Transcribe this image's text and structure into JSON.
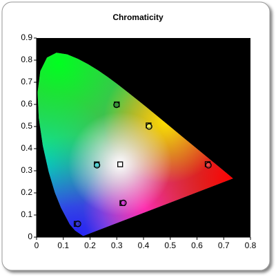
{
  "chart_data": {
    "type": "scatter",
    "title": "Chromaticity",
    "xlim": [
      0,
      0.8
    ],
    "xticks": [
      0,
      0.1,
      0.2,
      0.3,
      0.4,
      0.5,
      0.6,
      0.7,
      0.8
    ],
    "ylim": [
      0,
      0.9
    ],
    "yticks": [
      0,
      0.1,
      0.2,
      0.3,
      0.4,
      0.5,
      0.6,
      0.7,
      0.8,
      0.9
    ],
    "series": [
      {
        "marker": "square",
        "x": [
          0.64,
          0.3,
          0.15,
          0.3127,
          0.225,
          0.321,
          0.419
        ],
        "values": [
          0.33,
          0.6,
          0.06,
          0.329,
          0.329,
          0.154,
          0.505
        ],
        "colors": [
          "#e03a3a",
          "#2f8a2f",
          "#3030c0",
          "#ffffff",
          "#40c0c0",
          "#c040c0",
          "#e0e040"
        ]
      },
      {
        "marker": "circle",
        "x": [
          0.643,
          0.299,
          0.155,
          0.226,
          0.325,
          0.421
        ],
        "values": [
          0.325,
          0.598,
          0.06,
          0.325,
          0.155,
          0.5
        ],
        "colors": [
          "#ff5050",
          "#40a040",
          "#4040e0",
          "#60e0e0",
          "#e040e0",
          "#ffff60"
        ]
      }
    ]
  }
}
